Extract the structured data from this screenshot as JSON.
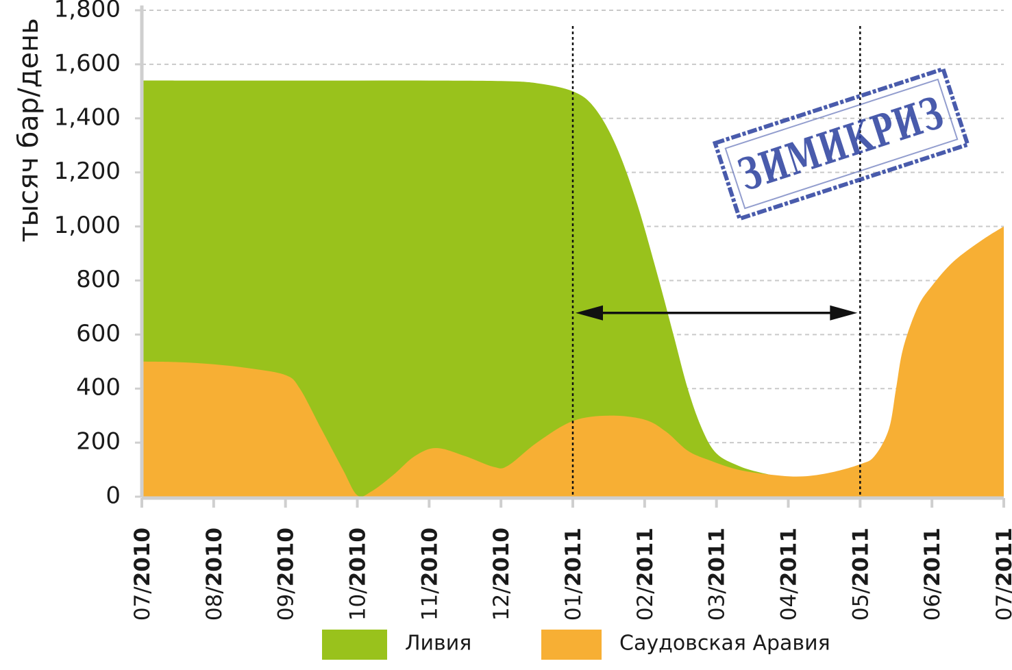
{
  "chart_data": {
    "type": "area",
    "ylabel": "тысяч бар/день",
    "xlabel": "",
    "ylim": [
      0,
      1800
    ],
    "yticks": [
      0,
      200,
      400,
      600,
      800,
      1000,
      1200,
      1400,
      1600,
      1800
    ],
    "ytick_labels": [
      "0",
      "200",
      "400",
      "600",
      "800",
      "1,000",
      "1,200",
      "1,400",
      "1,600",
      "1,800"
    ],
    "categories": [
      "07/2010",
      "08/2010",
      "09/2010",
      "10/2010",
      "11/2010",
      "12/2010",
      "01/2011",
      "02/2011",
      "03/2011",
      "04/2011",
      "05/2011",
      "06/2011",
      "07/2011"
    ],
    "category_parts": [
      [
        "07/",
        "2010"
      ],
      [
        "08/",
        "2010"
      ],
      [
        "09/",
        "2010"
      ],
      [
        "10/",
        "2010"
      ],
      [
        "11/",
        "2010"
      ],
      [
        "12/",
        "2010"
      ],
      [
        "01/",
        "2011"
      ],
      [
        "02/",
        "2011"
      ],
      [
        "03/",
        "2011"
      ],
      [
        "04/",
        "2011"
      ],
      [
        "05/",
        "2011"
      ],
      [
        "06/",
        "2011"
      ],
      [
        "07/",
        "2011"
      ]
    ],
    "series": [
      {
        "name": "Ливия",
        "color": "#99c21c",
        "points": [
          [
            0,
            1540
          ],
          [
            0.5,
            1540
          ],
          [
            1,
            1540
          ],
          [
            2,
            1540
          ],
          [
            3,
            1540
          ],
          [
            4,
            1540
          ],
          [
            5,
            1538
          ],
          [
            5.5,
            1530
          ],
          [
            6,
            1500
          ],
          [
            6.3,
            1440
          ],
          [
            6.6,
            1300
          ],
          [
            6.9,
            1080
          ],
          [
            7.2,
            800
          ],
          [
            7.4,
            600
          ],
          [
            7.6,
            400
          ],
          [
            7.8,
            250
          ],
          [
            8.0,
            160
          ],
          [
            8.3,
            115
          ],
          [
            8.6,
            90
          ],
          [
            9.0,
            70
          ],
          [
            9.3,
            70
          ],
          [
            9.7,
            90
          ],
          [
            10,
            115
          ]
        ]
      },
      {
        "name": "Саудовская Арабия",
        "color": "#f7af34",
        "points": [
          [
            0,
            500
          ],
          [
            0.5,
            498
          ],
          [
            1,
            490
          ],
          [
            1.5,
            475
          ],
          [
            2,
            450
          ],
          [
            2.2,
            400
          ],
          [
            2.5,
            250
          ],
          [
            2.8,
            100
          ],
          [
            3,
            5
          ],
          [
            3.2,
            20
          ],
          [
            3.5,
            80
          ],
          [
            3.8,
            150
          ],
          [
            4.1,
            180
          ],
          [
            4.5,
            150
          ],
          [
            4.9,
            110
          ],
          [
            5.1,
            115
          ],
          [
            5.5,
            200
          ],
          [
            6,
            280
          ],
          [
            6.5,
            300
          ],
          [
            7,
            285
          ],
          [
            7.3,
            240
          ],
          [
            7.6,
            170
          ],
          [
            7.9,
            135
          ],
          [
            8.3,
            100
          ],
          [
            8.8,
            80
          ],
          [
            9.2,
            75
          ],
          [
            9.6,
            90
          ],
          [
            10,
            120
          ],
          [
            10.2,
            150
          ],
          [
            10.4,
            250
          ],
          [
            10.5,
            400
          ],
          [
            10.6,
            550
          ],
          [
            10.8,
            700
          ],
          [
            11,
            780
          ],
          [
            11.3,
            870
          ],
          [
            11.7,
            950
          ],
          [
            12,
            1000
          ]
        ]
      }
    ],
    "vertical_markers": [
      6,
      10
    ],
    "arrow": {
      "from": 6,
      "to": 10,
      "y": 680
    },
    "legend": [
      {
        "label": "Ливия",
        "color": "#99c21c"
      },
      {
        "label": "Саудовская Аравия",
        "color": "#f7af34"
      }
    ],
    "legend_position": "bottom-center",
    "grid": "horizontal-dashed",
    "stamp": {
      "text": "ЗИМИКРИЗ",
      "color": "#2a3f9e"
    }
  }
}
